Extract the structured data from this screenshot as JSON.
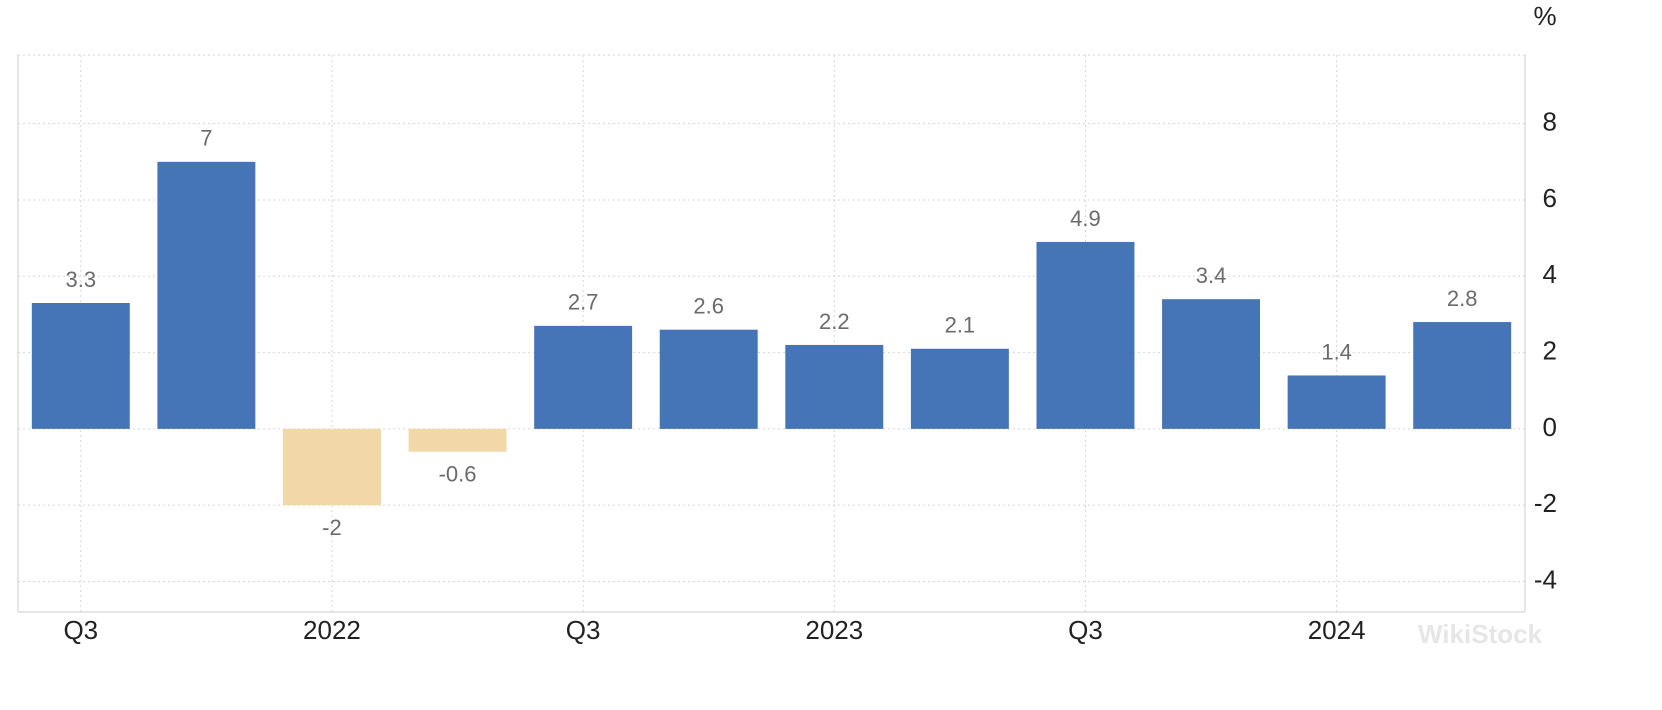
{
  "chart_data": {
    "type": "bar",
    "unit": "%",
    "watermark": "WikiStock",
    "categories": [
      "Q3",
      null,
      "2022",
      null,
      "Q3",
      null,
      "2023",
      null,
      "Q3",
      null,
      "2024",
      null
    ],
    "values": [
      3.3,
      7,
      -2,
      -0.6,
      2.7,
      2.6,
      2.2,
      2.1,
      4.9,
      3.4,
      1.4,
      2.8
    ],
    "color": "#4575b6",
    "negative_color": "#f2d8a8",
    "ylim": [
      -4.8,
      9.8
    ],
    "yticks": [
      -4,
      -2,
      0,
      2,
      4,
      6,
      8
    ],
    "grid": true
  }
}
